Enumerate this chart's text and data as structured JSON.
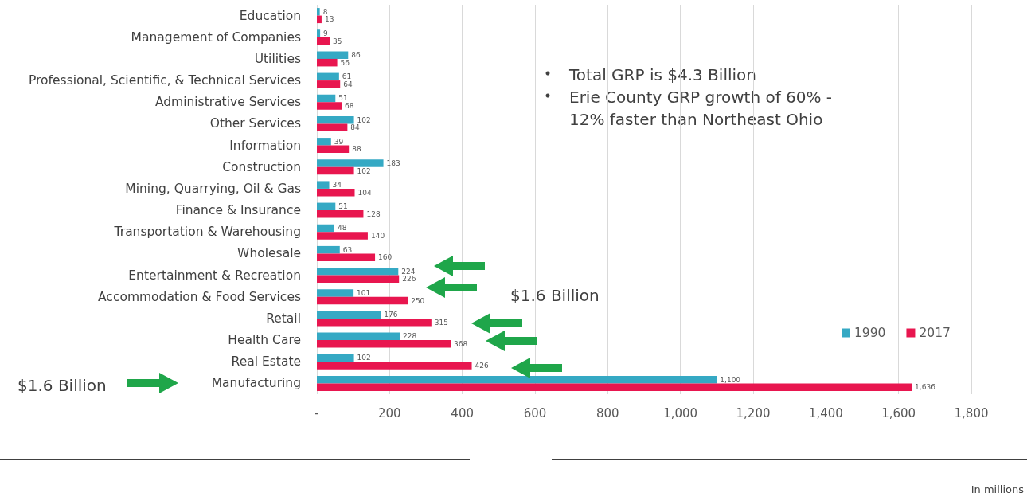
{
  "chart_data": {
    "type": "bar",
    "orientation": "horizontal",
    "categories": [
      "Education",
      "Management of Companies",
      "Utilities",
      "Professional, Scientific, & Technical Services",
      "Administrative Services",
      "Other Services",
      "Information",
      "Construction",
      "Mining, Quarrying, Oil & Gas",
      "Finance & Insurance",
      "Transportation & Warehousing",
      "Wholesale",
      "Entertainment & Recreation",
      "Accommodation & Food Services",
      "Retail",
      "Health Care",
      "Real Estate",
      "Manufacturing"
    ],
    "series": [
      {
        "name": "1990",
        "color": "#35a9c4",
        "values": [
          8,
          9,
          86,
          61,
          51,
          102,
          39,
          183,
          34,
          51,
          48,
          63,
          224,
          101,
          176,
          228,
          102,
          1100
        ],
        "value_labels": [
          "8",
          "9",
          "86",
          "61",
          "51",
          "102",
          "39",
          "183",
          "34",
          "51",
          "48",
          "63",
          "224",
          "101",
          "176",
          "228",
          "102",
          "1,100"
        ]
      },
      {
        "name": "2017",
        "color": "#e8164f",
        "values": [
          13,
          35,
          56,
          64,
          68,
          84,
          88,
          102,
          104,
          128,
          140,
          160,
          226,
          250,
          315,
          368,
          426,
          1636
        ],
        "value_labels": [
          "13",
          "35",
          "56",
          "64",
          "68",
          "84",
          "88",
          "102",
          "104",
          "128",
          "140",
          "160",
          "226",
          "250",
          "315",
          "368",
          "426",
          "1,636"
        ]
      }
    ],
    "xlim": [
      0,
      1800
    ],
    "xticks": [
      {
        "value": 0,
        "label": "-"
      },
      200,
      400,
      600,
      800,
      {
        "value": 1000,
        "label": "1,000"
      },
      {
        "value": 1200,
        "label": "1,200"
      },
      {
        "value": 1400,
        "label": "1,400"
      },
      {
        "value": 1600,
        "label": "1,600"
      },
      {
        "value": 1800,
        "label": "1,800"
      }
    ],
    "grid": "x",
    "legend": "right",
    "annotations": [
      "Total GRP is $4.3 Billion",
      "Erie County GRP growth of 60% -\n12% faster than Northeast Ohio",
      "$1.6 Billion",
      "$1.6 Billion",
      "In millions"
    ]
  }
}
